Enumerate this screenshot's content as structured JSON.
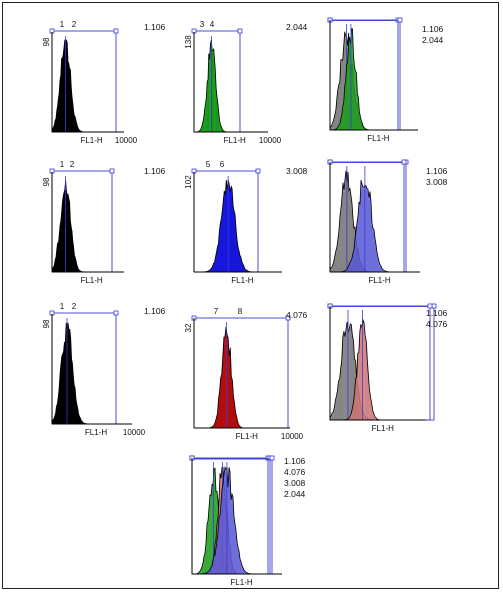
{
  "colors": {
    "axis": "#000000",
    "gate": "#3a3ad6",
    "black": "#000000",
    "green": "#22bb22",
    "blue": "#1a1aff",
    "red": "#cc1111",
    "grey": "#8a8a8a",
    "light_red": "#f08a8a",
    "light_blue": "#6b6bff"
  },
  "panels": [
    {
      "id": "p1",
      "xlabel": "FL1-H",
      "ymax": "98",
      "xmax": "10000",
      "markers": [
        "1",
        "2"
      ],
      "ratios": [
        "1.106"
      ],
      "chart_data": {
        "type": "area",
        "series": [
          {
            "color_key": "black",
            "peak_decade": 0.75,
            "spread": 0.28
          }
        ]
      }
    },
    {
      "id": "p2",
      "xlabel": "FL1-H",
      "ymax": "138",
      "xmax": "10000",
      "markers": [
        "3",
        "4"
      ],
      "ratios": [
        "2.044"
      ],
      "chart_data": {
        "type": "area",
        "series": [
          {
            "color_key": "green",
            "peak_decade": 0.95,
            "spread": 0.22
          }
        ]
      }
    },
    {
      "id": "p3",
      "xlabel": "FL1-H",
      "ymax": "",
      "xmax": "",
      "markers": [],
      "ratios": [
        "1.106",
        "2.044"
      ],
      "chart_data": {
        "type": "area",
        "series": [
          {
            "color_key": "grey",
            "peak_decade": 0.75,
            "spread": 0.28
          },
          {
            "color_key": "green",
            "peak_decade": 0.95,
            "spread": 0.22
          }
        ]
      }
    },
    {
      "id": "p4",
      "xlabel": "FL1-H",
      "ymax": "98",
      "xmax": "",
      "markers": [
        "1",
        "2"
      ],
      "ratios": [
        "1.106"
      ],
      "chart_data": {
        "type": "area",
        "series": [
          {
            "color_key": "black",
            "peak_decade": 0.75,
            "spread": 0.28
          }
        ]
      }
    },
    {
      "id": "p5",
      "xlabel": "FL1-H",
      "ymax": "102",
      "xmax": "",
      "markers": [
        "5",
        "6"
      ],
      "ratios": [
        "3.008"
      ],
      "chart_data": {
        "type": "area",
        "series": [
          {
            "color_key": "blue",
            "peak_decade": 1.55,
            "spread": 0.3
          }
        ]
      }
    },
    {
      "id": "p6",
      "xlabel": "FL1-H",
      "ymax": "",
      "xmax": "",
      "markers": [],
      "ratios": [
        "1.106",
        "3.008"
      ],
      "chart_data": {
        "type": "area",
        "series": [
          {
            "color_key": "grey",
            "peak_decade": 0.75,
            "spread": 0.28
          },
          {
            "color_key": "light_blue",
            "peak_decade": 1.55,
            "spread": 0.3
          }
        ]
      }
    },
    {
      "id": "p7",
      "xlabel": "FL1-H",
      "ymax": "98",
      "xmax": "10000",
      "markers": [
        "1",
        "2"
      ],
      "ratios": [
        "1.106"
      ],
      "chart_data": {
        "type": "area",
        "series": [
          {
            "color_key": "black",
            "peak_decade": 0.75,
            "spread": 0.28
          }
        ]
      }
    },
    {
      "id": "p8",
      "xlabel": "FL1-H",
      "ymax": "32",
      "xmax": "10000",
      "markers": [
        "7",
        "8"
      ],
      "ratios": [
        "4.076"
      ],
      "chart_data": {
        "type": "area",
        "series": [
          {
            "color_key": "red",
            "peak_decade": 1.35,
            "spread": 0.2
          }
        ]
      }
    },
    {
      "id": "p9",
      "xlabel": "FL1-H",
      "ymax": "",
      "xmax": "",
      "markers": [],
      "ratios": [
        "1.106",
        "4.076"
      ],
      "chart_data": {
        "type": "area",
        "series": [
          {
            "color_key": "grey",
            "peak_decade": 0.75,
            "spread": 0.28
          },
          {
            "color_key": "light_red",
            "peak_decade": 1.35,
            "spread": 0.2
          }
        ]
      }
    },
    {
      "id": "p10",
      "xlabel": "FL1-H",
      "ymax": "",
      "xmax": "",
      "markers": [],
      "ratios": [
        "1.106",
        "4.076",
        "3.008",
        "2.044"
      ],
      "chart_data": {
        "type": "area",
        "series": [
          {
            "color_key": "green",
            "peak_decade": 0.95,
            "spread": 0.22
          },
          {
            "color_key": "light_red",
            "peak_decade": 1.35,
            "spread": 0.2
          },
          {
            "color_key": "light_blue",
            "peak_decade": 1.55,
            "spread": 0.3
          }
        ]
      }
    }
  ]
}
